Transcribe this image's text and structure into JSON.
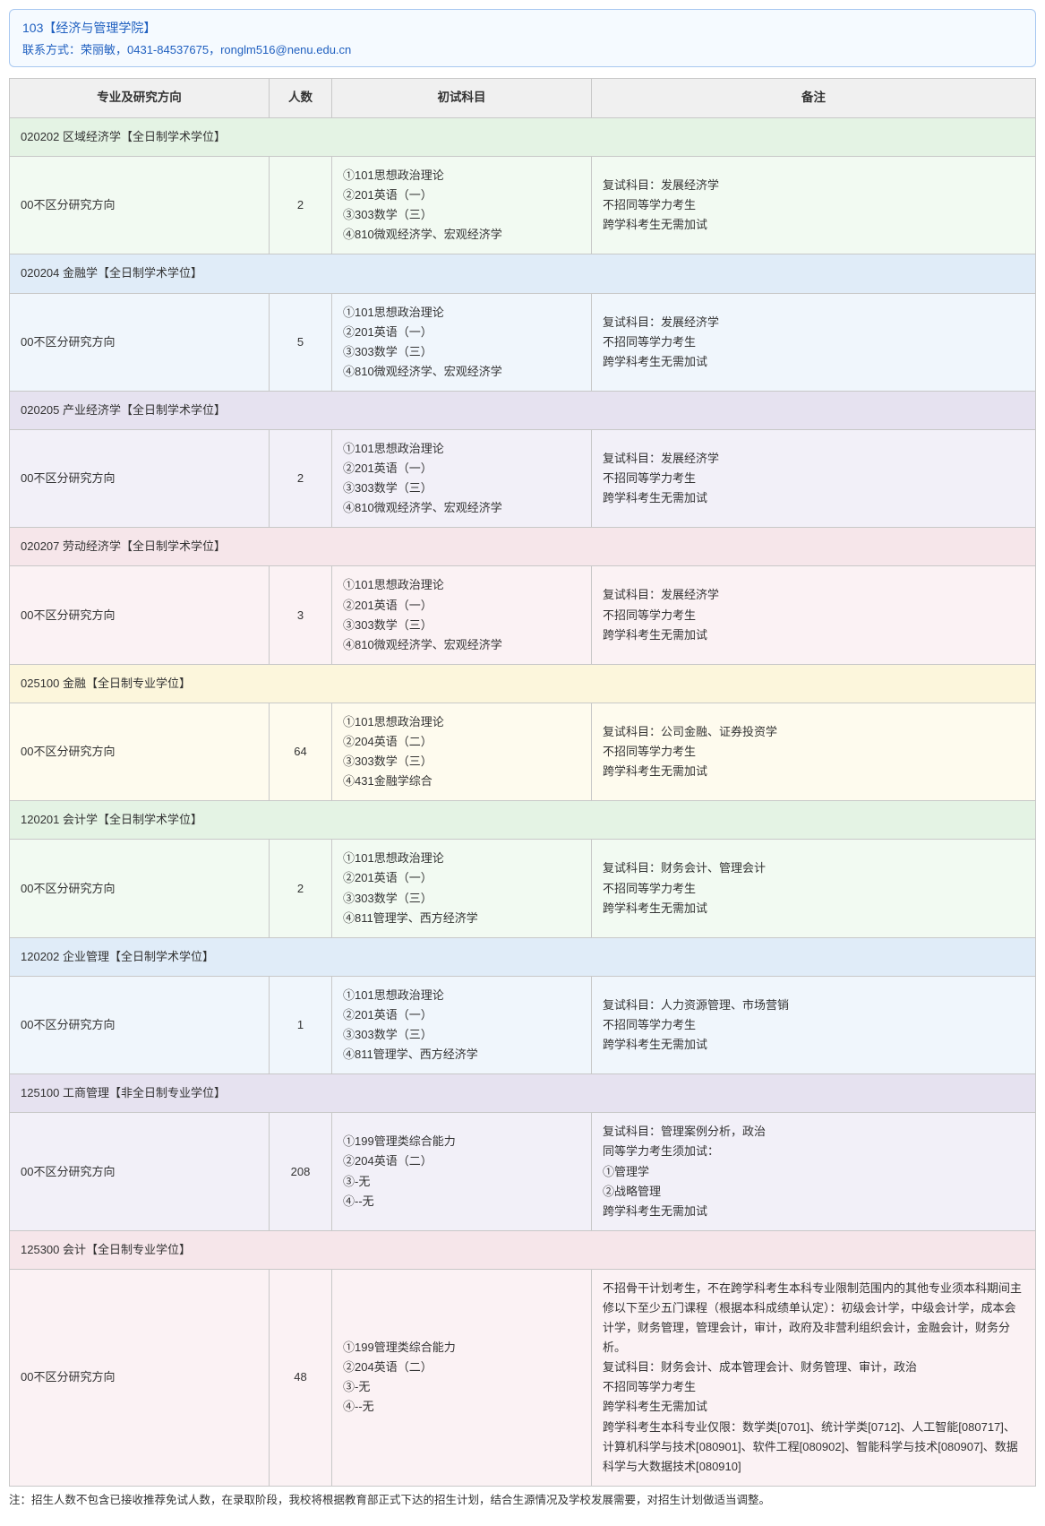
{
  "header": {
    "title": "103【经济与管理学院】",
    "contact": "联系方式：荣丽敏，0431-84537675，ronglm516@nenu.edu.cn"
  },
  "columns": {
    "major": "专业及研究方向",
    "count": "人数",
    "exam": "初试科目",
    "remark": "备注"
  },
  "colors": {
    "header_bg": "#f5faff",
    "header_border": "#a8c8f0",
    "header_text": "#2060c0",
    "th_bg": "#f0f0f0",
    "border": "#c8c8c8",
    "green": "#e4f3e4",
    "green_light": "#f2faf2",
    "blue": "#e0ecf8",
    "blue_light": "#f0f6fc",
    "purple": "#e6e2f0",
    "purple_light": "#f2f0f8",
    "pink": "#f6e6ea",
    "pink_light": "#fbf2f4",
    "yellow": "#fcf6dc",
    "yellow_light": "#fefbee"
  },
  "majors": [
    {
      "header": "020202 区域经济学【全日制学术学位】",
      "header_bg": "green",
      "row_bg": "green_light",
      "direction": "00不区分研究方向",
      "count": "2",
      "exam": "①101思想政治理论\n②201英语（一）\n③303数学（三）\n④810微观经济学、宏观经济学",
      "remark": "复试科目：发展经济学\n不招同等学力考生\n跨学科考生无需加试"
    },
    {
      "header": "020204 金融学【全日制学术学位】",
      "header_bg": "blue",
      "row_bg": "blue_light",
      "direction": "00不区分研究方向",
      "count": "5",
      "exam": "①101思想政治理论\n②201英语（一）\n③303数学（三）\n④810微观经济学、宏观经济学",
      "remark": "复试科目：发展经济学\n不招同等学力考生\n跨学科考生无需加试"
    },
    {
      "header": "020205 产业经济学【全日制学术学位】",
      "header_bg": "purple",
      "row_bg": "purple_light",
      "direction": "00不区分研究方向",
      "count": "2",
      "exam": "①101思想政治理论\n②201英语（一）\n③303数学（三）\n④810微观经济学、宏观经济学",
      "remark": "复试科目：发展经济学\n不招同等学力考生\n跨学科考生无需加试"
    },
    {
      "header": "020207 劳动经济学【全日制学术学位】",
      "header_bg": "pink",
      "row_bg": "pink_light",
      "direction": "00不区分研究方向",
      "count": "3",
      "exam": "①101思想政治理论\n②201英语（一）\n③303数学（三）\n④810微观经济学、宏观经济学",
      "remark": "复试科目：发展经济学\n不招同等学力考生\n跨学科考生无需加试"
    },
    {
      "header": "025100 金融【全日制专业学位】",
      "header_bg": "yellow",
      "row_bg": "yellow_light",
      "direction": "00不区分研究方向",
      "count": "64",
      "exam": "①101思想政治理论\n②204英语（二）\n③303数学（三）\n④431金融学综合",
      "remark": "复试科目：公司金融、证券投资学\n不招同等学力考生\n跨学科考生无需加试"
    },
    {
      "header": "120201 会计学【全日制学术学位】",
      "header_bg": "green",
      "row_bg": "green_light",
      "direction": "00不区分研究方向",
      "count": "2",
      "exam": "①101思想政治理论\n②201英语（一）\n③303数学（三）\n④811管理学、西方经济学",
      "remark": "复试科目：财务会计、管理会计\n不招同等学力考生\n跨学科考生无需加试"
    },
    {
      "header": "120202 企业管理【全日制学术学位】",
      "header_bg": "blue",
      "row_bg": "blue_light",
      "direction": "00不区分研究方向",
      "count": "1",
      "exam": "①101思想政治理论\n②201英语（一）\n③303数学（三）\n④811管理学、西方经济学",
      "remark": "复试科目：人力资源管理、市场营销\n不招同等学力考生\n跨学科考生无需加试"
    },
    {
      "header": "125100 工商管理【非全日制专业学位】",
      "header_bg": "purple",
      "row_bg": "purple_light",
      "direction": "00不区分研究方向",
      "count": "208",
      "exam": "①199管理类综合能力\n②204英语（二）\n③-无\n④--无",
      "remark": "复试科目：管理案例分析，政治\n同等学力考生须加试：\n①管理学\n②战略管理\n跨学科考生无需加试"
    },
    {
      "header": "125300 会计【全日制专业学位】",
      "header_bg": "pink",
      "row_bg": "pink_light",
      "direction": "00不区分研究方向",
      "count": "48",
      "exam": "①199管理类综合能力\n②204英语（二）\n③-无\n④--无",
      "remark": "不招骨干计划考生，不在跨学科考生本科专业限制范围内的其他专业须本科期间主修以下至少五门课程（根据本科成绩单认定）：初级会计学，中级会计学，成本会计学，财务管理，管理会计，审计，政府及非营利组织会计，金融会计，财务分析。\n复试科目：财务会计、成本管理会计、财务管理、审计，政治\n不招同等学力考生\n跨学科考生无需加试\n跨学科考生本科专业仅限：数学类[0701]、统计学类[0712]、人工智能[080717]、计算机科学与技术[080901]、软件工程[080902]、智能科学与技术[080907]、数据科学与大数据技术[080910]"
    }
  ],
  "footnote": "注：招生人数不包含已接收推荐免试人数，在录取阶段，我校将根据教育部正式下达的招生计划，结合生源情况及学校发展需要，对招生计划做适当调整。"
}
